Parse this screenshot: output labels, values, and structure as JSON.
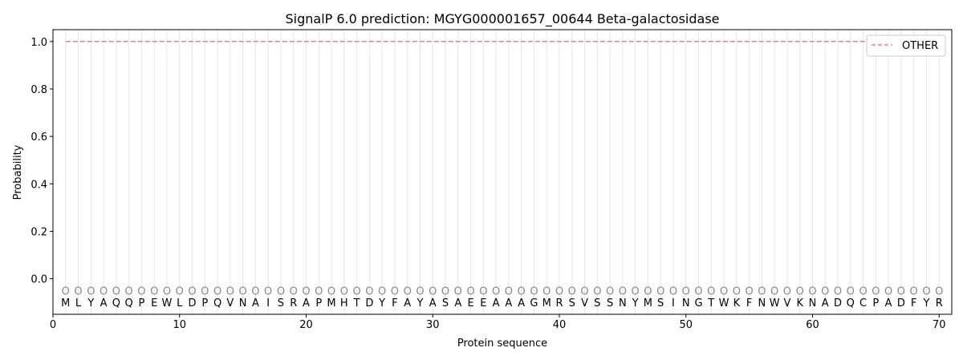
{
  "chart_data": {
    "type": "line",
    "title": "SignalP 6.0 prediction: MGYG000001657_00644 Beta-galactosidase",
    "xlabel": "Protein sequence",
    "ylabel": "Probability",
    "xlim": [
      0,
      71
    ],
    "ylim": [
      -0.15,
      1.05
    ],
    "xticks": [
      0,
      10,
      20,
      30,
      40,
      50,
      60,
      70
    ],
    "yticks": [
      "0.0",
      "0.2",
      "0.4",
      "0.6",
      "0.8",
      "1.0"
    ],
    "grid": "vertical lines at each residue",
    "legend_position": "top-right",
    "sequence": [
      "M",
      "L",
      "Y",
      "A",
      "Q",
      "Q",
      "P",
      "E",
      "W",
      "L",
      "D",
      "P",
      "Q",
      "V",
      "N",
      "A",
      "I",
      "S",
      "R",
      "A",
      "P",
      "M",
      "H",
      "T",
      "D",
      "Y",
      "F",
      "A",
      "Y",
      "A",
      "S",
      "A",
      "E",
      "E",
      "A",
      "A",
      "A",
      "G",
      "M",
      "R",
      "S",
      "V",
      "S",
      "S",
      "N",
      "Y",
      "M",
      "S",
      "I",
      "N",
      "G",
      "T",
      "W",
      "K",
      "F",
      "N",
      "W",
      "V",
      "K",
      "N",
      "A",
      "D",
      "Q",
      "C",
      "P",
      "A",
      "D",
      "F",
      "Y",
      "R"
    ],
    "predicted_label": "O",
    "series": [
      {
        "name": "OTHER",
        "color": "#f08080",
        "style": "dashed",
        "x_range": [
          1,
          70
        ],
        "value": 1.0
      }
    ]
  }
}
